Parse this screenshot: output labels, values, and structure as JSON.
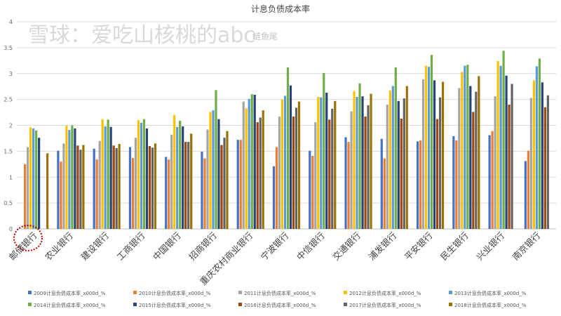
{
  "chart_data": {
    "type": "bar",
    "title": "计息负债成本率",
    "xlabel": "",
    "ylabel": "",
    "ylim": [
      0,
      4
    ],
    "yticks": [
      "0",
      "0.5",
      "1",
      "1.5",
      "2",
      "2.5",
      "3",
      "3.5",
      "4"
    ],
    "grid": true,
    "legend_position": "bottom",
    "categories": [
      "邮储银行",
      "农业银行",
      "建设银行",
      "工商银行",
      "中国银行",
      "招商银行",
      "重庆农村商业银行",
      "宁波银行",
      "中信银行",
      "交通银行",
      "浦发银行",
      "平安银行",
      "民生银行",
      "兴业银行",
      "南京银行"
    ],
    "series": [
      {
        "name": "2009计息负债成本率_x000d_%",
        "color": "#4472C4",
        "values": [
          null,
          1.51,
          1.55,
          1.58,
          1.39,
          1.49,
          1.72,
          1.21,
          1.51,
          1.77,
          1.74,
          1.69,
          1.79,
          1.81,
          1.31
        ]
      },
      {
        "name": "2010计息负债成本率_x000d_%",
        "color": "#ED7D31",
        "values": [
          1.25,
          1.3,
          1.34,
          1.37,
          1.34,
          1.36,
          1.72,
          1.58,
          1.41,
          1.68,
          1.36,
          1.71,
          1.71,
          1.89,
          1.51
        ]
      },
      {
        "name": "2011计息负债成本率_x000d_%",
        "color": "#A5A5A5",
        "values": [
          1.58,
          1.65,
          1.7,
          1.76,
          1.82,
          1.92,
          2.46,
          2.17,
          2.06,
          2.27,
          2.4,
          2.89,
          2.72,
          2.56,
          2.53
        ]
      },
      {
        "name": "2012计息负债成本率_x000d_%",
        "color": "#FFC000",
        "values": [
          1.96,
          1.99,
          2.12,
          2.1,
          2.2,
          2.26,
          2.33,
          2.5,
          2.55,
          2.66,
          2.67,
          3.15,
          3.03,
          3.24,
          2.87
        ]
      },
      {
        "name": "2013计息负债成本率_x000d_%",
        "color": "#5B9BD5",
        "values": [
          1.94,
          1.91,
          1.98,
          2.05,
          1.97,
          2.29,
          2.51,
          2.57,
          2.54,
          2.55,
          2.76,
          3.13,
          3.15,
          3.15,
          3.14
        ]
      },
      {
        "name": "2014计息负债成本率_x000d_%",
        "color": "#70AD47",
        "values": [
          1.9,
          2.0,
          2.11,
          2.12,
          2.09,
          2.68,
          2.6,
          3.12,
          3.01,
          2.81,
          3.12,
          3.36,
          3.17,
          3.44,
          3.29
        ]
      },
      {
        "name": "2015计息负债成本率_x000d_%",
        "color": "#264478",
        "values": [
          1.76,
          1.94,
          1.97,
          1.94,
          1.98,
          2.12,
          2.59,
          2.77,
          2.63,
          2.56,
          2.47,
          2.87,
          2.76,
          2.96,
          2.83
        ]
      },
      {
        "name": "2016计息负债成本率_x000d_%",
        "color": "#9E480E",
        "values": [
          null,
          1.61,
          1.61,
          1.6,
          1.68,
          1.62,
          2.06,
          2.17,
          2.11,
          2.17,
          2.13,
          2.12,
          2.26,
          2.4,
          2.35
        ]
      },
      {
        "name": "2017计息负债成本率_x000d_%",
        "color": "#636363",
        "values": [
          null,
          1.53,
          1.56,
          1.57,
          1.68,
          1.76,
          2.15,
          2.34,
          2.32,
          2.39,
          2.52,
          2.54,
          2.65,
          2.8,
          2.58
        ]
      },
      {
        "name": "2018计息负债成本率_x000d_%",
        "color": "#997300",
        "values": [
          1.46,
          1.62,
          1.64,
          1.65,
          1.84,
          1.89,
          2.29,
          2.46,
          2.47,
          2.61,
          2.76,
          2.84,
          2.95,
          null,
          null
        ]
      }
    ]
  },
  "watermark": {
    "main": "雪球：爱吃山核桃的abc",
    "secondary": "鲢鱼尾"
  },
  "highlight_color": "#C00000"
}
